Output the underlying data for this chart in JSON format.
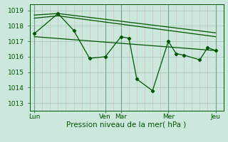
{
  "bg_color": "#cce8dc",
  "grid_color_major": "#aaccbb",
  "grid_color_minor": "#c0ddd0",
  "line_color": "#005500",
  "marker_color": "#005500",
  "xlabel": "Pression niveau de la mer( hPa )",
  "ylim": [
    1012.5,
    1019.4
  ],
  "yticks": [
    1013,
    1014,
    1015,
    1016,
    1017,
    1018,
    1019
  ],
  "xtick_labels": [
    "Lun",
    "Ven",
    "Mar",
    "Mer",
    "Jeu"
  ],
  "xtick_positions": [
    0,
    45,
    55,
    85,
    115
  ],
  "xlim": [
    -3,
    120
  ],
  "vline_positions": [
    0,
    45,
    55,
    85,
    115
  ],
  "vline_color": "#7a9a8a",
  "minor_vline_step": 5,
  "series1_x": [
    0,
    15,
    25,
    35,
    45,
    55,
    60,
    65,
    75,
    85,
    90,
    95,
    105,
    110,
    115
  ],
  "series1_y": [
    1017.5,
    1018.8,
    1017.7,
    1015.9,
    1016.0,
    1017.3,
    1017.2,
    1014.55,
    1013.8,
    1017.0,
    1016.2,
    1016.1,
    1015.8,
    1016.6,
    1016.4
  ],
  "series2_x": [
    0,
    115
  ],
  "series2_y": [
    1017.3,
    1016.4
  ],
  "series3_x": [
    0,
    15,
    115
  ],
  "series3_y": [
    1018.7,
    1018.8,
    1017.55
  ],
  "series4_x": [
    0,
    15,
    115
  ],
  "series4_y": [
    1018.5,
    1018.65,
    1017.3
  ],
  "lw": 0.9,
  "ms": 2.2
}
